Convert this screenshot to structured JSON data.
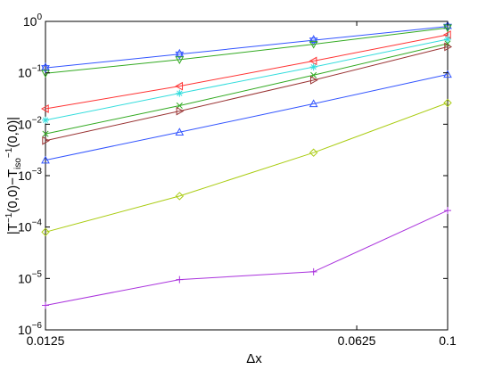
{
  "chart_data": {
    "type": "line",
    "xlabel": "Δx",
    "ylabel_parts": {
      "a": "|T",
      "a_sup": "−1",
      "b": "(0,0)−T",
      "b_sub": "iso",
      "b_sup": "−1",
      "c": "(0,0)|"
    },
    "x_scale": "log",
    "y_scale": "log",
    "xlim": [
      0.0125,
      0.1
    ],
    "ylim": [
      1e-06,
      1
    ],
    "x_ticks": [
      {
        "value": 0.0125,
        "label": "0.0125"
      },
      {
        "value": 0.0625,
        "label": "0.0625"
      },
      {
        "value": 0.1,
        "label": "0.1"
      }
    ],
    "y_ticks": [
      {
        "value": 1e-06,
        "base": "10",
        "exp": "−6"
      },
      {
        "value": 1e-05,
        "base": "10",
        "exp": "−5"
      },
      {
        "value": 0.0001,
        "base": "10",
        "exp": "−4"
      },
      {
        "value": 0.001,
        "base": "10",
        "exp": "−3"
      },
      {
        "value": 0.01,
        "base": "10",
        "exp": "−2"
      },
      {
        "value": 0.1,
        "base": "10",
        "exp": "−1"
      },
      {
        "value": 1,
        "base": "10",
        "exp": "0"
      }
    ],
    "grid": false,
    "x": [
      0.0125,
      0.025,
      0.05,
      0.1
    ],
    "series": [
      {
        "color": "#3355ff",
        "marker": "hexagram",
        "values": [
          0.125,
          0.23,
          0.43,
          0.8
        ]
      },
      {
        "color": "#33aa22",
        "marker": "triangle-down",
        "values": [
          0.098,
          0.18,
          0.36,
          0.75
        ]
      },
      {
        "color": "#ff3333",
        "marker": "triangle-left",
        "values": [
          0.02,
          0.055,
          0.17,
          0.55
        ]
      },
      {
        "color": "#33dddd",
        "marker": "asterisk",
        "values": [
          0.012,
          0.04,
          0.13,
          0.45
        ]
      },
      {
        "color": "#33aa22",
        "marker": "x",
        "values": [
          0.0065,
          0.023,
          0.09,
          0.37
        ]
      },
      {
        "color": "#993333",
        "marker": "triangle-right",
        "values": [
          0.0048,
          0.018,
          0.072,
          0.32
        ]
      },
      {
        "color": "#3355ff",
        "marker": "triangle-up",
        "values": [
          0.002,
          0.007,
          0.025,
          0.093
        ]
      },
      {
        "color": "#aacc11",
        "marker": "diamond",
        "values": [
          8e-05,
          0.0004,
          0.0028,
          0.026
        ]
      },
      {
        "color": "#aa33dd",
        "marker": "plus",
        "values": [
          3e-06,
          9.5e-06,
          1.35e-05,
          0.00021
        ]
      }
    ]
  }
}
